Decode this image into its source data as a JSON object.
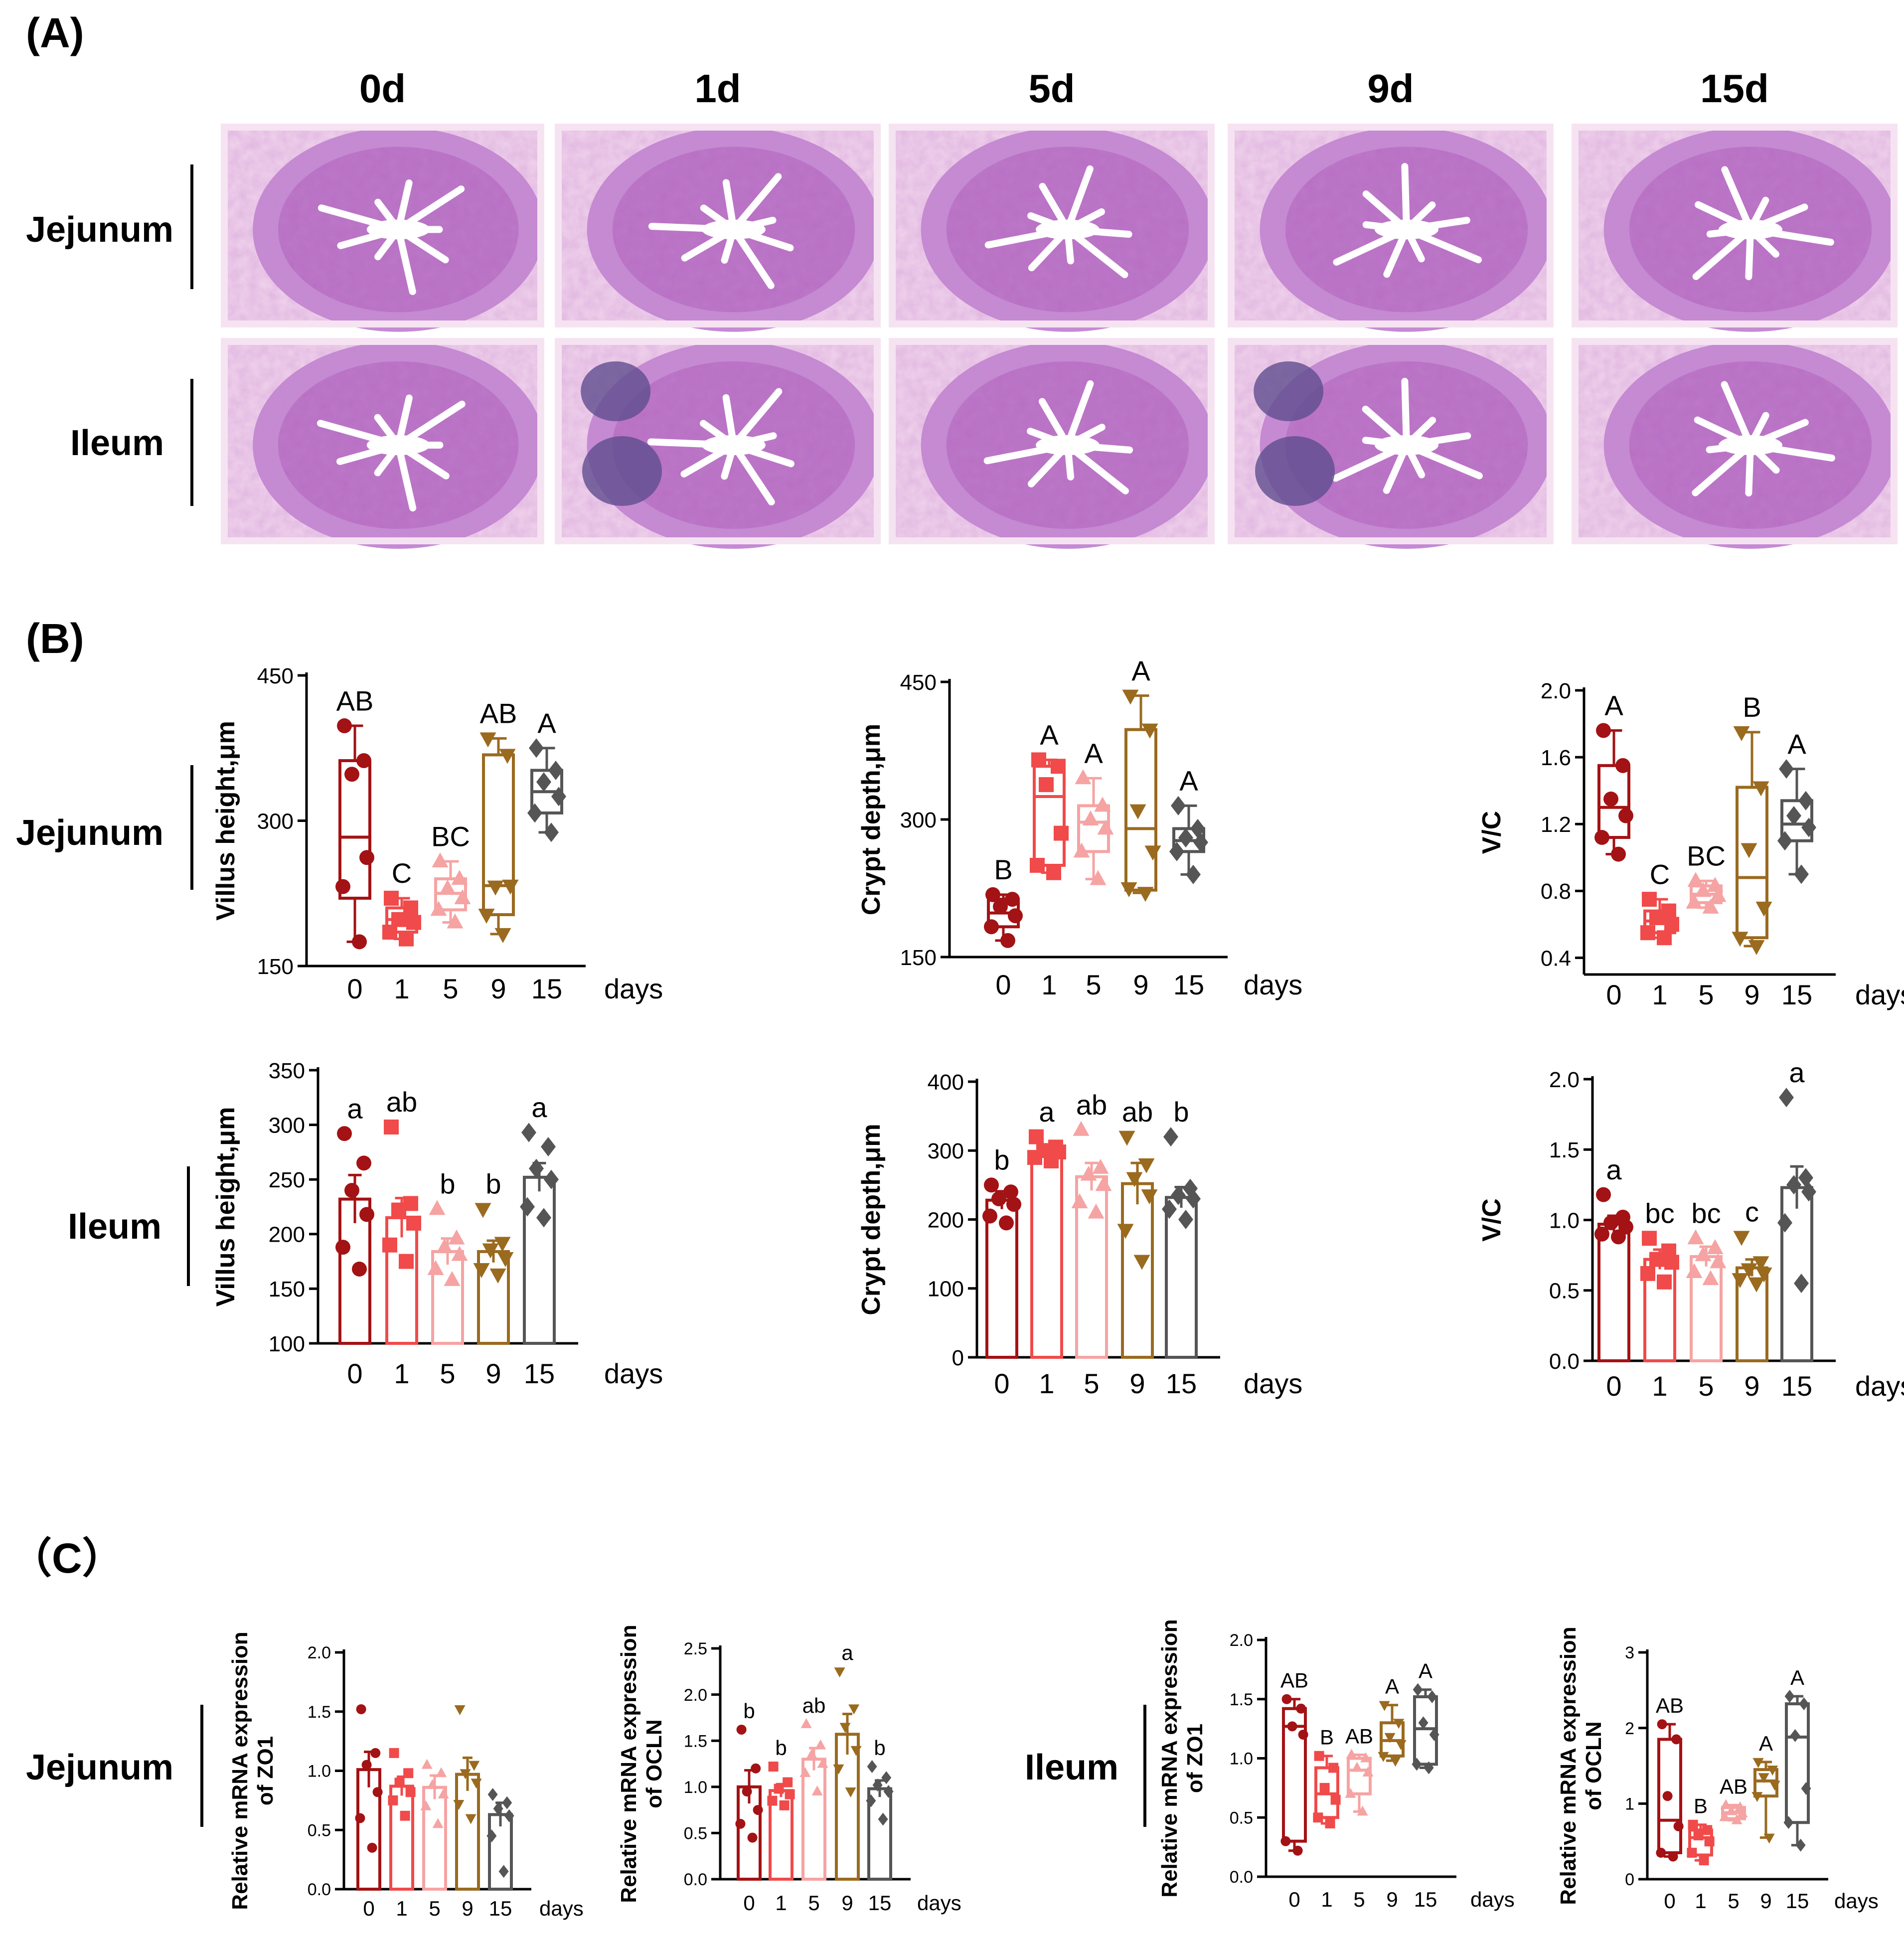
{
  "panels": {
    "a": "(A)",
    "b": "(B)",
    "c": "（C）"
  },
  "colors": [
    "#a31214",
    "#f04a4a",
    "#f6a3a3",
    "#9a6a1f",
    "#555555"
  ],
  "histology": {
    "columns": [
      "0d",
      "1d",
      "5d",
      "9d",
      "15d"
    ],
    "rows": [
      "Jejunum",
      "Ileum"
    ],
    "tissue_color": "#b86fc4",
    "lumen_color": "#ffffff"
  },
  "row_labels": {
    "b_top": "Jejunum",
    "b_bottom": "Ileum",
    "c_left": "Jejunum",
    "c_right": "Ileum"
  },
  "chart_data": [
    {
      "id": "jej-villus",
      "type": "box",
      "ylabel": "Villus height,μm",
      "yticks": [
        150,
        300,
        450
      ],
      "ylim": [
        150,
        450
      ],
      "categories": [
        "0",
        "1",
        "5",
        "9",
        "15"
      ],
      "xunit": "days",
      "letters": [
        "AB",
        "C",
        "BC",
        "AB",
        "A"
      ],
      "series": [
        {
          "q1": 220,
          "median": 283,
          "q3": 362,
          "min": 175,
          "max": 398,
          "points": [
            398,
            362,
            348,
            262,
            232,
            175
          ]
        },
        {
          "q1": 185,
          "median": 198,
          "q3": 210,
          "min": 178,
          "max": 220,
          "points": [
            220,
            210,
            198,
            195,
            185,
            178
          ]
        },
        {
          "q1": 208,
          "median": 225,
          "q3": 240,
          "min": 195,
          "max": 258,
          "points": [
            258,
            240,
            230,
            220,
            208,
            195
          ]
        },
        {
          "q1": 203,
          "median": 233,
          "q3": 368,
          "min": 183,
          "max": 385,
          "points": [
            385,
            368,
            232,
            233,
            203,
            183
          ]
        },
        {
          "q1": 308,
          "median": 330,
          "q3": 352,
          "min": 288,
          "max": 375,
          "points": [
            375,
            352,
            340,
            325,
            308,
            288
          ]
        }
      ]
    },
    {
      "id": "jej-crypt",
      "type": "box",
      "ylabel": "Crypt depth,μm",
      "yticks": [
        150,
        300,
        450
      ],
      "ylim": [
        150,
        450
      ],
      "categories": [
        "0",
        "1",
        "5",
        "9",
        "15"
      ],
      "xunit": "days",
      "letters": [
        "B",
        "A",
        "A",
        "A",
        "A"
      ],
      "series": [
        {
          "q1": 183,
          "median": 198,
          "q3": 213,
          "min": 168,
          "max": 218,
          "points": [
            218,
            213,
            205,
            195,
            183,
            168
          ]
        },
        {
          "q1": 250,
          "median": 325,
          "q3": 358,
          "min": 242,
          "max": 365,
          "points": [
            365,
            358,
            338,
            285,
            250,
            242
          ]
        },
        {
          "q1": 265,
          "median": 297,
          "q3": 315,
          "min": 235,
          "max": 345,
          "points": [
            345,
            315,
            300,
            290,
            265,
            235
          ]
        },
        {
          "q1": 223,
          "median": 290,
          "q3": 398,
          "min": 220,
          "max": 435,
          "points": [
            435,
            398,
            310,
            265,
            225,
            220
          ]
        },
        {
          "q1": 265,
          "median": 277,
          "q3": 290,
          "min": 240,
          "max": 315,
          "points": [
            315,
            290,
            280,
            275,
            265,
            240
          ]
        }
      ]
    },
    {
      "id": "jej-vc",
      "type": "box",
      "ylabel": "V/C",
      "yticks": [
        0.4,
        0.8,
        1.2,
        1.6,
        2.0
      ],
      "ylim": [
        0.3,
        2.0
      ],
      "categories": [
        "0",
        "1",
        "5",
        "9",
        "15"
      ],
      "xunit": "days",
      "letters": [
        "A",
        "C",
        "BC",
        "B",
        "A"
      ],
      "series": [
        {
          "q1": 1.12,
          "median": 1.3,
          "q3": 1.55,
          "min": 1.02,
          "max": 1.76,
          "points": [
            1.76,
            1.55,
            1.35,
            1.25,
            1.12,
            1.02
          ]
        },
        {
          "q1": 0.55,
          "median": 0.62,
          "q3": 0.68,
          "min": 0.52,
          "max": 0.75,
          "points": [
            0.75,
            0.68,
            0.64,
            0.6,
            0.55,
            0.52
          ]
        },
        {
          "q1": 0.73,
          "median": 0.78,
          "q3": 0.83,
          "min": 0.7,
          "max": 0.86,
          "points": [
            0.86,
            0.83,
            0.8,
            0.77,
            0.73,
            0.7
          ]
        },
        {
          "q1": 0.52,
          "median": 0.88,
          "q3": 1.42,
          "min": 0.47,
          "max": 1.75,
          "points": [
            1.75,
            1.42,
            1.05,
            0.7,
            0.52,
            0.47
          ]
        },
        {
          "q1": 1.1,
          "median": 1.2,
          "q3": 1.34,
          "min": 0.9,
          "max": 1.53,
          "points": [
            1.53,
            1.34,
            1.25,
            1.18,
            1.1,
            0.9
          ]
        }
      ]
    },
    {
      "id": "ile-villus",
      "type": "bar",
      "ylabel": "Villus height,μm",
      "yticks": [
        100,
        150,
        200,
        250,
        300,
        350
      ],
      "ylim": [
        100,
        350
      ],
      "categories": [
        "0",
        "1",
        "5",
        "9",
        "15"
      ],
      "xunit": "days",
      "letters": [
        "a",
        "ab",
        "b",
        "b",
        "a"
      ],
      "series": [
        {
          "mean": 232,
          "sem": 22,
          "points": [
            292,
            265,
            240,
            218,
            188,
            168
          ]
        },
        {
          "mean": 215,
          "sem": 18,
          "points": [
            298,
            228,
            222,
            210,
            190,
            175
          ]
        },
        {
          "mean": 184,
          "sem": 12,
          "points": [
            223,
            196,
            188,
            181,
            168,
            158
          ]
        },
        {
          "mean": 184,
          "sem": 10,
          "points": [
            223,
            192,
            186,
            178,
            168,
            163
          ]
        },
        {
          "mean": 252,
          "sem": 13,
          "points": [
            293,
            280,
            260,
            250,
            225,
            215
          ]
        }
      ]
    },
    {
      "id": "ile-crypt",
      "type": "bar",
      "ylabel": "Crypt depth,μm",
      "yticks": [
        0,
        100,
        200,
        300,
        400
      ],
      "ylim": [
        0,
        400
      ],
      "categories": [
        "0",
        "1",
        "5",
        "9",
        "15"
      ],
      "xunit": "days",
      "letters": [
        "b",
        "a",
        "ab",
        "ab",
        "b"
      ],
      "series": [
        {
          "mean": 228,
          "sem": 13,
          "points": [
            250,
            240,
            230,
            222,
            205,
            195
          ]
        },
        {
          "mean": 298,
          "sem": 7,
          "points": [
            320,
            305,
            300,
            298,
            290,
            285
          ]
        },
        {
          "mean": 262,
          "sem": 20,
          "points": [
            330,
            275,
            265,
            250,
            225,
            210
          ]
        },
        {
          "mean": 252,
          "sem": 30,
          "points": [
            320,
            280,
            260,
            235,
            185,
            140
          ]
        },
        {
          "mean": 232,
          "sem": 15,
          "points": [
            320,
            245,
            235,
            230,
            215,
            200
          ]
        }
      ]
    },
    {
      "id": "ile-vc",
      "type": "bar",
      "ylabel": "V/C",
      "yticks": [
        0.0,
        0.5,
        1.0,
        1.5,
        2.0
      ],
      "ylim": [
        0,
        2.0
      ],
      "categories": [
        "0",
        "1",
        "5",
        "9",
        "15"
      ],
      "xunit": "days",
      "letters": [
        "a",
        "bc",
        "bc",
        "c",
        "a"
      ],
      "series": [
        {
          "mean": 0.97,
          "sem": 0.06,
          "points": [
            1.18,
            1.02,
            0.98,
            0.95,
            0.9,
            0.88
          ]
        },
        {
          "mean": 0.72,
          "sem": 0.07,
          "points": [
            0.87,
            0.78,
            0.72,
            0.7,
            0.62,
            0.56
          ]
        },
        {
          "mean": 0.74,
          "sem": 0.07,
          "points": [
            0.87,
            0.8,
            0.75,
            0.7,
            0.63,
            0.58
          ]
        },
        {
          "mean": 0.66,
          "sem": 0.06,
          "points": [
            0.88,
            0.7,
            0.65,
            0.62,
            0.58,
            0.55
          ]
        },
        {
          "mean": 1.23,
          "sem": 0.15,
          "points": [
            1.87,
            1.3,
            1.25,
            1.2,
            0.98,
            0.55
          ]
        }
      ]
    },
    {
      "id": "c-jej-zo1",
      "type": "bar",
      "ylabel": [
        "Relative mRNA expression",
        "of ZO1"
      ],
      "yticks": [
        0.0,
        0.5,
        1.0,
        1.5,
        2.0
      ],
      "ylim": [
        0,
        2.0
      ],
      "categories": [
        "0",
        "1",
        "5",
        "9",
        "15"
      ],
      "xunit": "days",
      "letters": [
        "",
        "",
        "",
        "",
        ""
      ],
      "series": [
        {
          "mean": 1.01,
          "sem": 0.15,
          "points": [
            1.52,
            1.15,
            1.05,
            0.82,
            0.6,
            0.35
          ]
        },
        {
          "mean": 0.87,
          "sem": 0.08,
          "points": [
            1.15,
            0.98,
            0.9,
            0.82,
            0.75,
            0.62
          ]
        },
        {
          "mean": 0.86,
          "sem": 0.1,
          "points": [
            1.05,
            0.98,
            0.88,
            0.8,
            0.7,
            0.55
          ]
        },
        {
          "mean": 0.97,
          "sem": 0.14,
          "points": [
            1.52,
            1.05,
            0.98,
            0.9,
            0.72,
            0.6
          ]
        },
        {
          "mean": 0.63,
          "sem": 0.1,
          "points": [
            0.8,
            0.73,
            0.68,
            0.62,
            0.45,
            0.15
          ]
        }
      ]
    },
    {
      "id": "c-jej-ocln",
      "type": "bar",
      "ylabel": [
        "Relative mRNA expression",
        "of OCLN"
      ],
      "yticks": [
        0.0,
        0.5,
        1.0,
        1.5,
        2.0,
        2.5
      ],
      "ylim": [
        0,
        2.5
      ],
      "categories": [
        "0",
        "1",
        "5",
        "9",
        "15"
      ],
      "xunit": "days",
      "letters": [
        "b",
        "b",
        "ab",
        "a",
        "b"
      ],
      "series": [
        {
          "mean": 1.0,
          "sem": 0.18,
          "points": [
            1.62,
            1.2,
            0.95,
            0.75,
            0.6,
            0.45
          ]
        },
        {
          "mean": 0.96,
          "sem": 0.07,
          "points": [
            1.22,
            1.05,
            0.98,
            0.92,
            0.85,
            0.8
          ]
        },
        {
          "mean": 1.3,
          "sem": 0.12,
          "points": [
            1.68,
            1.45,
            1.35,
            1.25,
            1.15,
            0.95
          ]
        },
        {
          "mean": 1.57,
          "sem": 0.22,
          "points": [
            2.25,
            1.85,
            1.65,
            1.4,
            1.2,
            0.95
          ]
        },
        {
          "mean": 0.98,
          "sem": 0.09,
          "points": [
            1.22,
            1.1,
            1.02,
            0.95,
            0.85,
            0.65
          ]
        }
      ]
    },
    {
      "id": "c-ile-zo1",
      "type": "box",
      "ylabel": [
        "Relative mRNA expression",
        "of ZO1"
      ],
      "yticks": [
        0.0,
        0.5,
        1.0,
        1.5,
        2.0
      ],
      "ylim": [
        0,
        2.0
      ],
      "categories": [
        "0",
        "1",
        "5",
        "9",
        "15"
      ],
      "xunit": "days",
      "letters": [
        "AB",
        "B",
        "AB",
        "A",
        "A"
      ],
      "series": [
        {
          "q1": 0.3,
          "median": 1.27,
          "q3": 1.42,
          "min": 0.22,
          "max": 1.5,
          "points": [
            1.5,
            1.42,
            1.27,
            1.2,
            0.3,
            0.22
          ]
        },
        {
          "q1": 0.5,
          "median": 0.7,
          "q3": 0.92,
          "min": 0.45,
          "max": 1.02,
          "points": [
            1.02,
            0.92,
            0.75,
            0.65,
            0.5,
            0.45
          ]
        },
        {
          "q1": 0.7,
          "median": 0.9,
          "q3": 1.0,
          "min": 0.55,
          "max": 1.03,
          "points": [
            1.03,
            1.0,
            0.92,
            0.88,
            0.7,
            0.55
          ]
        },
        {
          "q1": 1.02,
          "median": 1.15,
          "q3": 1.3,
          "min": 0.98,
          "max": 1.45,
          "points": [
            1.45,
            1.3,
            1.18,
            1.12,
            1.02,
            0.98
          ]
        },
        {
          "q1": 0.95,
          "median": 1.25,
          "q3": 1.52,
          "min": 0.92,
          "max": 1.58,
          "points": [
            1.58,
            1.52,
            1.3,
            1.2,
            0.95,
            0.92
          ]
        }
      ]
    },
    {
      "id": "c-ile-ocln",
      "type": "box",
      "ylabel": [
        "Relative mRNA expression",
        "of OCLN"
      ],
      "yticks": [
        0,
        1,
        2,
        3
      ],
      "ylim": [
        0,
        3
      ],
      "categories": [
        "0",
        "1",
        "5",
        "9",
        "15"
      ],
      "xunit": "days",
      "letters": [
        "AB",
        "B",
        "AB",
        "A",
        "A"
      ],
      "series": [
        {
          "q1": 0.35,
          "median": 0.78,
          "q3": 1.85,
          "min": 0.3,
          "max": 2.05,
          "points": [
            2.05,
            1.85,
            1.1,
            0.7,
            0.35,
            0.3
          ]
        },
        {
          "q1": 0.32,
          "median": 0.55,
          "q3": 0.65,
          "min": 0.25,
          "max": 0.72,
          "points": [
            0.72,
            0.65,
            0.58,
            0.5,
            0.35,
            0.25
          ]
        },
        {
          "q1": 0.8,
          "median": 0.88,
          "q3": 0.95,
          "min": 0.78,
          "max": 0.98,
          "points": [
            0.98,
            0.95,
            0.9,
            0.87,
            0.82,
            0.78
          ]
        },
        {
          "q1": 1.1,
          "median": 1.3,
          "q3": 1.45,
          "min": 0.55,
          "max": 1.55,
          "points": [
            1.55,
            1.45,
            1.35,
            1.25,
            1.1,
            0.55
          ]
        },
        {
          "q1": 0.75,
          "median": 1.88,
          "q3": 2.32,
          "min": 0.45,
          "max": 2.42,
          "points": [
            2.42,
            2.32,
            1.9,
            1.2,
            0.75,
            0.45
          ]
        }
      ]
    }
  ]
}
